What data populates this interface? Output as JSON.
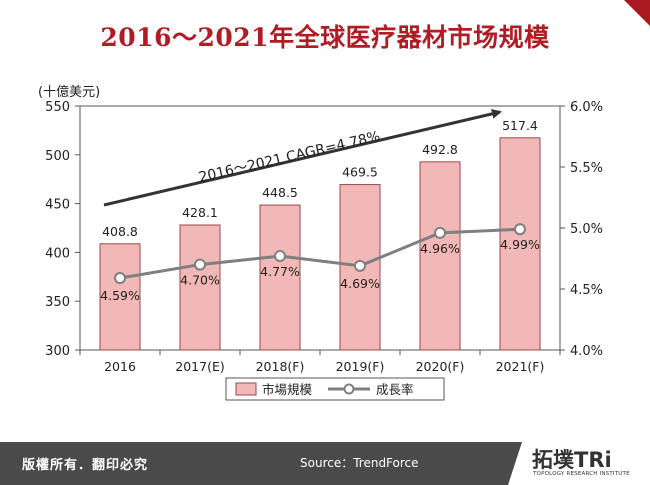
{
  "header": {
    "title": "2016～2021年全球医疗器材市场规模"
  },
  "footer": {
    "copyright": "版權所有．翻印必究",
    "source": "Source：TrendForce",
    "logo_text": "拓墣TRi",
    "logo_tagline": "TOPOLOGY RESEARCH INSTITUTE"
  },
  "colors": {
    "brand_red": "#b01b24",
    "bar_fill": "#f1b8b7",
    "bar_stroke": "#9a4a4a",
    "line": "#7f7f7f",
    "arrow": "#333333",
    "footer_bg": "#4a4a4a"
  },
  "chart_data": {
    "type": "bar",
    "unit_label": "(十億美元)",
    "categories": [
      "2016",
      "2017(E)",
      "2018(F)",
      "2019(F)",
      "2020(F)",
      "2021(F)"
    ],
    "series": [
      {
        "name": "市場規模",
        "type": "bar",
        "axis": "left",
        "values": [
          408.8,
          428.1,
          448.5,
          469.5,
          492.8,
          517.4
        ],
        "labels": [
          "408.8",
          "428.1",
          "448.5",
          "469.5",
          "492.8",
          "517.4"
        ]
      },
      {
        "name": "成長率",
        "type": "line",
        "axis": "right",
        "values": [
          4.59,
          4.7,
          4.77,
          4.69,
          4.96,
          4.99
        ],
        "labels": [
          "4.59%",
          "4.70%",
          "4.77%",
          "4.69%",
          "4.96%",
          "4.99%"
        ]
      }
    ],
    "y_left": {
      "min": 300,
      "max": 550,
      "ticks": [
        "300",
        "350",
        "400",
        "450",
        "500",
        "550"
      ]
    },
    "y_right": {
      "min": 4.0,
      "max": 6.0,
      "ticks": [
        "4.0%",
        "4.5%",
        "5.0%",
        "5.5%",
        "6.0%"
      ]
    },
    "annotation": "2016～2021 CAGR=4.78%",
    "legend_position": "bottom",
    "grid": false
  }
}
